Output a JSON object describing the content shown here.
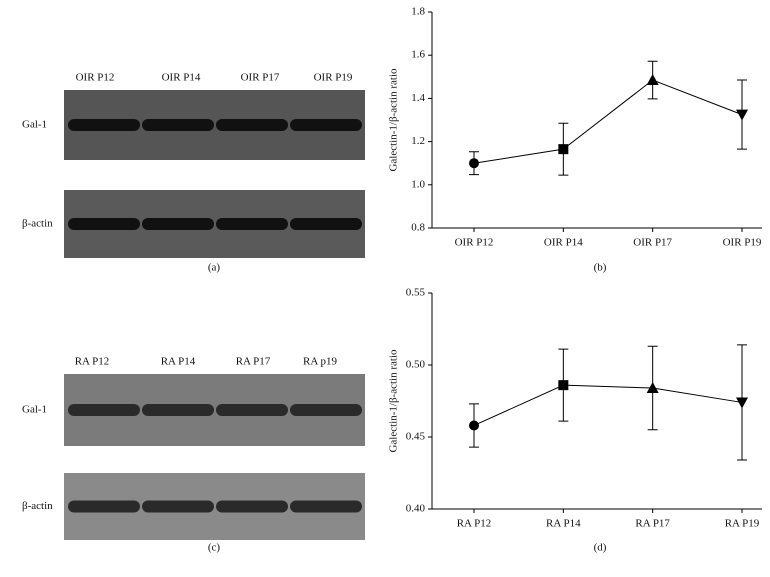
{
  "blots": [
    {
      "label": "(a)",
      "lanes": [
        "OIR P12",
        "OIR P14",
        "OIR P17",
        "OIR P19"
      ],
      "bands": [
        "Gal-1",
        "β-actin"
      ]
    },
    {
      "label": "(c)",
      "lanes": [
        "RA P12",
        "RA P14",
        "RA P17",
        "RA p19"
      ],
      "bands": [
        "Gal-1",
        "β-actin"
      ]
    }
  ],
  "chart_data": [
    {
      "type": "line",
      "label": "(b)",
      "ylabel": "Galectin-1/β-actin ratio",
      "categories": [
        "OIR P12",
        "OIR P14",
        "OIR P17",
        "OIR P19"
      ],
      "series": [
        {
          "color": "#000000",
          "values": [
            1.1,
            1.165,
            1.485,
            1.325
          ],
          "errors": [
            0.053,
            0.12,
            0.087,
            0.16
          ]
        }
      ],
      "ylim": [
        0.8,
        1.8
      ],
      "yticks": [
        0.8,
        {
          "value": 1.0,
          "label": "1.0"
        },
        1.2,
        1.4,
        1.6,
        1.8
      ]
    },
    {
      "type": "line",
      "label": "(d)",
      "ylabel": "Galectin-1/β-actin ratio",
      "categories": [
        "RA P12",
        "RA P14",
        "RA P17",
        "RA P19"
      ],
      "series": [
        {
          "color": "#000000",
          "values": [
            0.458,
            0.486,
            0.484,
            0.474
          ],
          "errors": [
            0.015,
            0.025,
            0.029,
            0.04
          ]
        }
      ],
      "ylim": [
        0.4,
        0.55
      ],
      "yticks": [
        {
          "value": 0.4,
          "label": "0.40"
        },
        0.45,
        {
          "value": 0.5,
          "label": "0.50"
        },
        0.55
      ]
    }
  ]
}
